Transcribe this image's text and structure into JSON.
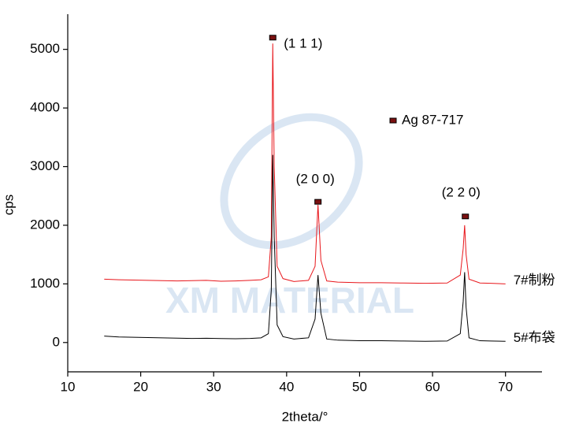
{
  "chart_data": {
    "type": "line",
    "xlabel": "2theta/°",
    "ylabel": "cps",
    "watermark": "XM MATERIAL",
    "xlim": [
      10,
      75
    ],
    "xticks": [
      10,
      20,
      30,
      40,
      50,
      60,
      70
    ],
    "ylim": [
      -500,
      5600
    ],
    "yticks": [
      0,
      1000,
      2000,
      3000,
      4000,
      5000
    ],
    "x": [
      15,
      17,
      19,
      21,
      23,
      25,
      27,
      29,
      31,
      33,
      35,
      36.5,
      37.5,
      37.9,
      38.1,
      38.3,
      38.7,
      39.5,
      41,
      43,
      43.9,
      44.3,
      44.7,
      45.5,
      47,
      50,
      53,
      56,
      59,
      62,
      63.8,
      64.2,
      64.4,
      64.6,
      65,
      66.5,
      68,
      70
    ],
    "series": [
      {
        "name": "7#制粉",
        "color": "#e8161b",
        "values": [
          1080,
          1070,
          1065,
          1060,
          1055,
          1050,
          1055,
          1060,
          1045,
          1050,
          1060,
          1070,
          1120,
          1800,
          5100,
          3000,
          1300,
          1090,
          1040,
          1060,
          1300,
          2350,
          1400,
          1050,
          1030,
          1020,
          1020,
          1015,
          1010,
          1015,
          1150,
          1600,
          2000,
          1500,
          1080,
          1015,
          1010,
          1000
        ]
      },
      {
        "name": "5#布袋",
        "color": "#000000",
        "values": [
          110,
          95,
          90,
          85,
          80,
          75,
          70,
          72,
          68,
          65,
          70,
          80,
          150,
          900,
          3200,
          1800,
          300,
          100,
          60,
          80,
          400,
          1150,
          500,
          60,
          40,
          30,
          30,
          25,
          20,
          25,
          150,
          700,
          1200,
          600,
          80,
          30,
          25,
          20
        ]
      }
    ],
    "reference": {
      "name": "Ag 87-717",
      "color": "#7a1010",
      "x": [
        38.1,
        44.3,
        64.5
      ],
      "values": [
        5200,
        2400,
        2150
      ],
      "labels": [
        "(1 1 1)",
        "(2 0 0)",
        "(2 2 0)"
      ]
    }
  }
}
